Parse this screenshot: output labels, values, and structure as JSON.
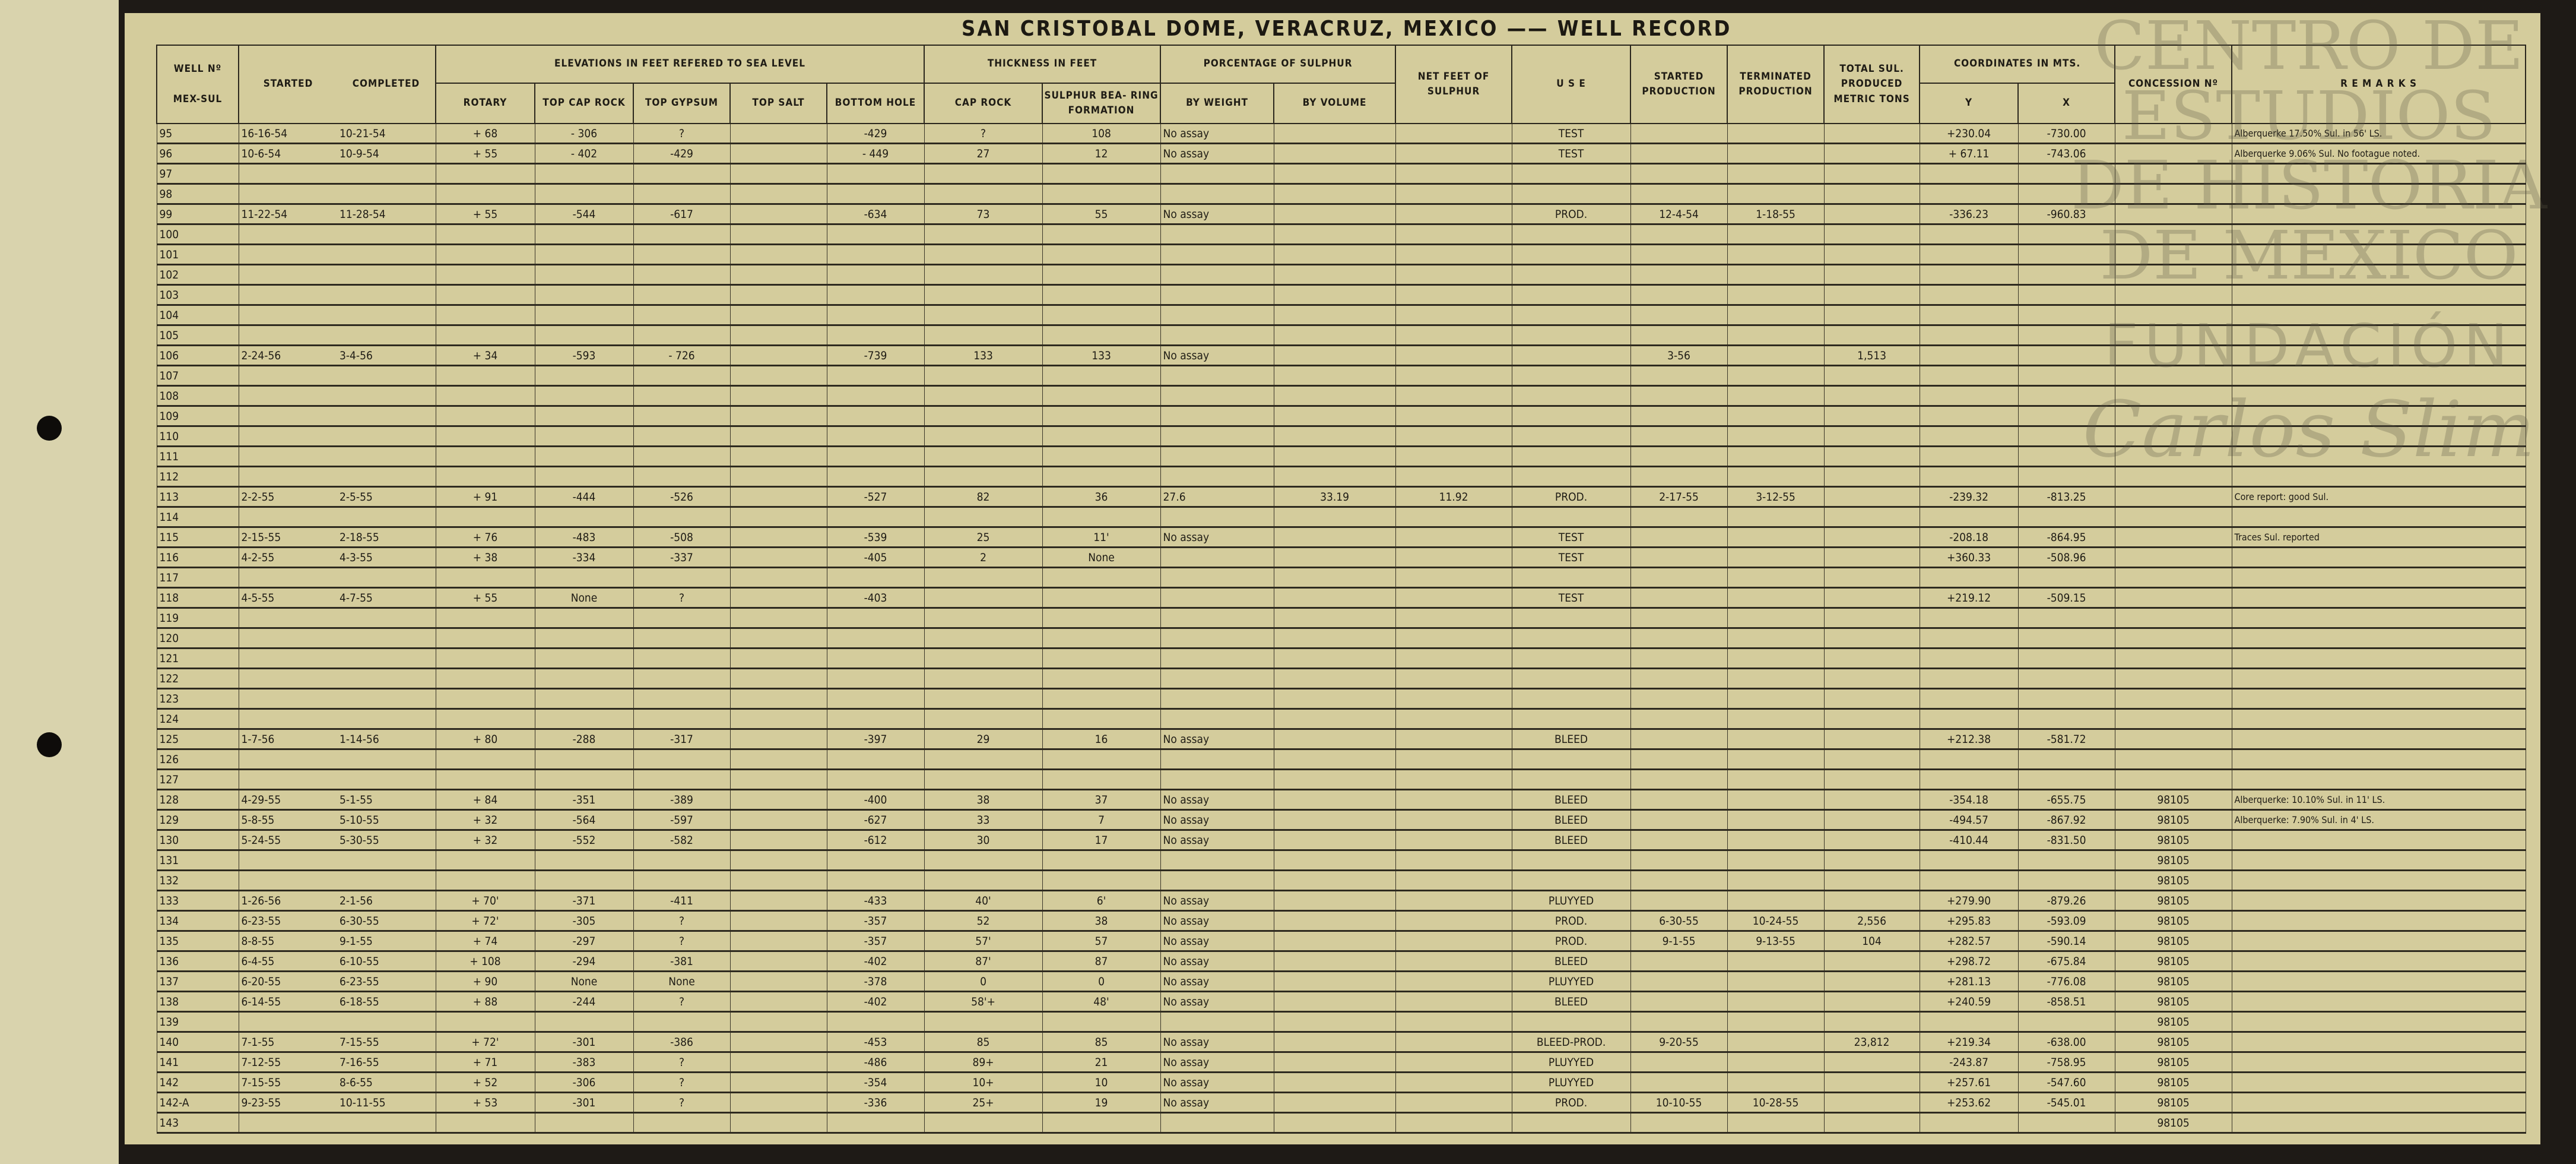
{
  "title": "SAN CRISTOBAL DOME, VERACRUZ, MEXICO —— WELL RECORD",
  "watermark": {
    "line1": "CENTRO DE",
    "line2": "ESTUDIOS",
    "line3": "DE HISTORIA",
    "line4": "DE MEXICO",
    "line5": "FUNDACIÓN",
    "line6": "Carlos Slim"
  },
  "colors": {
    "paper": "#d4cc9c",
    "ink": "#1f1c15",
    "frame": "#1e1a16"
  },
  "headers": {
    "well_no": "WELL Nº",
    "mex_sul": "MEX-SUL",
    "started": "STARTED",
    "completed": "COMPLETED",
    "elevations": "ELEVATIONS IN FEET REFERED TO SEA LEVEL",
    "rotary": "ROTARY",
    "top_cap_rock": "TOP CAP ROCK",
    "top_gypsum": "TOP GYPSUM",
    "top_salt": "TOP SALT",
    "bottom_hole": "BOTTOM HOLE",
    "thickness": "THICKNESS IN FEET",
    "cap_rock": "CAP ROCK",
    "sulphur_bearing": "SULPHUR BEA- RING FORMATION",
    "percentage": "PORCENTAGE OF SULPHUR",
    "by_weight": "BY WEIGHT",
    "by_volume": "BY VOLUME",
    "net_feet": "NET FEET OF SULPHUR",
    "use": "U S E",
    "started_production": "STARTED PRODUCTION",
    "terminated_production": "TERMINATED PRODUCTION",
    "total_sul": "TOTAL SUL. PRODUCED METRIC TONS",
    "coordinates": "COORDINATES IN MTS.",
    "y": "Y",
    "x": "X",
    "concession": "CONCESSION Nº",
    "remarks": "R E M A R K S"
  },
  "rows": [
    [
      "95",
      "16-16-54",
      "10-21-54",
      "+ 68",
      "- 306",
      "?",
      "",
      "-429",
      "?",
      "108",
      "No assay",
      "",
      "",
      "TEST",
      "",
      "",
      "",
      "+230.04",
      "-730.00",
      "",
      "Alberquerke 17.50% Sul. in 56' LS."
    ],
    [
      "96",
      "10-6-54",
      "10-9-54",
      "+ 55",
      "- 402",
      "-429",
      "",
      "- 449",
      "27",
      "12",
      "No assay",
      "",
      "",
      "TEST",
      "",
      "",
      "",
      "+ 67.11",
      "-743.06",
      "",
      "Alberquerke 9.06% Sul. No footague noted."
    ],
    [
      "97",
      "",
      "",
      "",
      "",
      "",
      "",
      "",
      "",
      "",
      "",
      "",
      "",
      "",
      "",
      "",
      "",
      "",
      "",
      "",
      ""
    ],
    [
      "98",
      "",
      "",
      "",
      "",
      "",
      "",
      "",
      "",
      "",
      "",
      "",
      "",
      "",
      "",
      "",
      "",
      "",
      "",
      "",
      ""
    ],
    [
      "99",
      "11-22-54",
      "11-28-54",
      "+ 55",
      "-544",
      "-617",
      "",
      "-634",
      "73",
      "55",
      "No assay",
      "",
      "",
      "PROD.",
      "12-4-54",
      "1-18-55",
      "",
      "-336.23",
      "-960.83",
      "",
      ""
    ],
    [
      "100",
      "",
      "",
      "",
      "",
      "",
      "",
      "",
      "",
      "",
      "",
      "",
      "",
      "",
      "",
      "",
      "",
      "",
      "",
      "",
      ""
    ],
    [
      "101",
      "",
      "",
      "",
      "",
      "",
      "",
      "",
      "",
      "",
      "",
      "",
      "",
      "",
      "",
      "",
      "",
      "",
      "",
      "",
      ""
    ],
    [
      "102",
      "",
      "",
      "",
      "",
      "",
      "",
      "",
      "",
      "",
      "",
      "",
      "",
      "",
      "",
      "",
      "",
      "",
      "",
      "",
      ""
    ],
    [
      "103",
      "",
      "",
      "",
      "",
      "",
      "",
      "",
      "",
      "",
      "",
      "",
      "",
      "",
      "",
      "",
      "",
      "",
      "",
      "",
      ""
    ],
    [
      "104",
      "",
      "",
      "",
      "",
      "",
      "",
      "",
      "",
      "",
      "",
      "",
      "",
      "",
      "",
      "",
      "",
      "",
      "",
      "",
      ""
    ],
    [
      "105",
      "",
      "",
      "",
      "",
      "",
      "",
      "",
      "",
      "",
      "",
      "",
      "",
      "",
      "",
      "",
      "",
      "",
      "",
      "",
      ""
    ],
    [
      "106",
      "2-24-56",
      "3-4-56",
      "+ 34",
      "-593",
      "- 726",
      "",
      "-739",
      "133",
      "133",
      "No assay",
      "",
      "",
      "",
      "3-56",
      "",
      "1,513",
      "",
      "",
      "",
      ""
    ],
    [
      "107",
      "",
      "",
      "",
      "",
      "",
      "",
      "",
      "",
      "",
      "",
      "",
      "",
      "",
      "",
      "",
      "",
      "",
      "",
      "",
      ""
    ],
    [
      "108",
      "",
      "",
      "",
      "",
      "",
      "",
      "",
      "",
      "",
      "",
      "",
      "",
      "",
      "",
      "",
      "",
      "",
      "",
      "",
      ""
    ],
    [
      "109",
      "",
      "",
      "",
      "",
      "",
      "",
      "",
      "",
      "",
      "",
      "",
      "",
      "",
      "",
      "",
      "",
      "",
      "",
      "",
      ""
    ],
    [
      "110",
      "",
      "",
      "",
      "",
      "",
      "",
      "",
      "",
      "",
      "",
      "",
      "",
      "",
      "",
      "",
      "",
      "",
      "",
      "",
      ""
    ],
    [
      "111",
      "",
      "",
      "",
      "",
      "",
      "",
      "",
      "",
      "",
      "",
      "",
      "",
      "",
      "",
      "",
      "",
      "",
      "",
      "",
      ""
    ],
    [
      "112",
      "",
      "",
      "",
      "",
      "",
      "",
      "",
      "",
      "",
      "",
      "",
      "",
      "",
      "",
      "",
      "",
      "",
      "",
      "",
      ""
    ],
    [
      "113",
      "2-2-55",
      "2-5-55",
      "+ 91",
      "-444",
      "-526",
      "",
      "-527",
      "82",
      "36",
      "27.6",
      "33.19",
      "11.92",
      "PROD.",
      "2-17-55",
      "3-12-55",
      "",
      "-239.32",
      "-813.25",
      "",
      "Core report: good Sul."
    ],
    [
      "114",
      "",
      "",
      "",
      "",
      "",
      "",
      "",
      "",
      "",
      "",
      "",
      "",
      "",
      "",
      "",
      "",
      "",
      "",
      "",
      ""
    ],
    [
      "115",
      "2-15-55",
      "2-18-55",
      "+ 76",
      "-483",
      "-508",
      "",
      "-539",
      "25",
      "11'",
      "No assay",
      "",
      "",
      "TEST",
      "",
      "",
      "",
      "-208.18",
      "-864.95",
      "",
      "Traces Sul. reported"
    ],
    [
      "116",
      "4-2-55",
      "4-3-55",
      "+ 38",
      "-334",
      "-337",
      "",
      "-405",
      "2",
      "None",
      "",
      "",
      "",
      "TEST",
      "",
      "",
      "",
      "+360.33",
      "-508.96",
      "",
      ""
    ],
    [
      "117",
      "",
      "",
      "",
      "",
      "",
      "",
      "",
      "",
      "",
      "",
      "",
      "",
      "",
      "",
      "",
      "",
      "",
      "",
      "",
      ""
    ],
    [
      "118",
      "4-5-55",
      "4-7-55",
      "+ 55",
      "None",
      "?",
      "",
      "-403",
      "",
      "",
      "",
      "",
      "",
      "TEST",
      "",
      "",
      "",
      "+219.12",
      "-509.15",
      "",
      ""
    ],
    [
      "119",
      "",
      "",
      "",
      "",
      "",
      "",
      "",
      "",
      "",
      "",
      "",
      "",
      "",
      "",
      "",
      "",
      "",
      "",
      "",
      ""
    ],
    [
      "120",
      "",
      "",
      "",
      "",
      "",
      "",
      "",
      "",
      "",
      "",
      "",
      "",
      "",
      "",
      "",
      "",
      "",
      "",
      "",
      ""
    ],
    [
      "121",
      "",
      "",
      "",
      "",
      "",
      "",
      "",
      "",
      "",
      "",
      "",
      "",
      "",
      "",
      "",
      "",
      "",
      "",
      "",
      ""
    ],
    [
      "122",
      "",
      "",
      "",
      "",
      "",
      "",
      "",
      "",
      "",
      "",
      "",
      "",
      "",
      "",
      "",
      "",
      "",
      "",
      "",
      ""
    ],
    [
      "123",
      "",
      "",
      "",
      "",
      "",
      "",
      "",
      "",
      "",
      "",
      "",
      "",
      "",
      "",
      "",
      "",
      "",
      "",
      "",
      ""
    ],
    [
      "124",
      "",
      "",
      "",
      "",
      "",
      "",
      "",
      "",
      "",
      "",
      "",
      "",
      "",
      "",
      "",
      "",
      "",
      "",
      "",
      ""
    ],
    [
      "125",
      "1-7-56",
      "1-14-56",
      "+ 80",
      "-288",
      "-317",
      "",
      "-397",
      "29",
      "16",
      "No assay",
      "",
      "",
      "BLEED",
      "",
      "",
      "",
      "+212.38",
      "-581.72",
      "",
      ""
    ],
    [
      "126",
      "",
      "",
      "",
      "",
      "",
      "",
      "",
      "",
      "",
      "",
      "",
      "",
      "",
      "",
      "",
      "",
      "",
      "",
      "",
      ""
    ],
    [
      "127",
      "",
      "",
      "",
      "",
      "",
      "",
      "",
      "",
      "",
      "",
      "",
      "",
      "",
      "",
      "",
      "",
      "",
      "",
      "",
      ""
    ],
    [
      "128",
      "4-29-55",
      "5-1-55",
      "+ 84",
      "-351",
      "-389",
      "",
      "-400",
      "38",
      "37",
      "No assay",
      "",
      "",
      "BLEED",
      "",
      "",
      "",
      "-354.18",
      "-655.75",
      "98105",
      "Alberquerke: 10.10% Sul. in 11' LS."
    ],
    [
      "129",
      "5-8-55",
      "5-10-55",
      "+ 32",
      "-564",
      "-597",
      "",
      "-627",
      "33",
      "7",
      "No assay",
      "",
      "",
      "BLEED",
      "",
      "",
      "",
      "-494.57",
      "-867.92",
      "98105",
      "Alberquerke: 7.90% Sul. in 4' LS."
    ],
    [
      "130",
      "5-24-55",
      "5-30-55",
      "+ 32",
      "-552",
      "-582",
      "",
      "-612",
      "30",
      "17",
      "No assay",
      "",
      "",
      "BLEED",
      "",
      "",
      "",
      "-410.44",
      "-831.50",
      "98105",
      ""
    ],
    [
      "131",
      "",
      "",
      "",
      "",
      "",
      "",
      "",
      "",
      "",
      "",
      "",
      "",
      "",
      "",
      "",
      "",
      "",
      "",
      "98105",
      ""
    ],
    [
      "132",
      "",
      "",
      "",
      "",
      "",
      "",
      "",
      "",
      "",
      "",
      "",
      "",
      "",
      "",
      "",
      "",
      "",
      "",
      "98105",
      ""
    ],
    [
      "133",
      "1-26-56",
      "2-1-56",
      "+ 70'",
      "-371",
      "-411",
      "",
      "-433",
      "40'",
      "6'",
      "No assay",
      "",
      "",
      "PLUYYED",
      "",
      "",
      "",
      "+279.90",
      "-879.26",
      "98105",
      ""
    ],
    [
      "134",
      "6-23-55",
      "6-30-55",
      "+ 72'",
      "-305",
      "?",
      "",
      "-357",
      "52",
      "38",
      "No assay",
      "",
      "",
      "PROD.",
      "6-30-55",
      "10-24-55",
      "2,556",
      "+295.83",
      "-593.09",
      "98105",
      ""
    ],
    [
      "135",
      "8-8-55",
      "9-1-55",
      "+ 74",
      "-297",
      "?",
      "",
      "-357",
      "57'",
      "57",
      "No assay",
      "",
      "",
      "PROD.",
      "9-1-55",
      "9-13-55",
      "104",
      "+282.57",
      "-590.14",
      "98105",
      ""
    ],
    [
      "136",
      "6-4-55",
      "6-10-55",
      "+ 108",
      "-294",
      "-381",
      "",
      "-402",
      "87'",
      "87",
      "No assay",
      "",
      "",
      "BLEED",
      "",
      "",
      "",
      "+298.72",
      "-675.84",
      "98105",
      ""
    ],
    [
      "137",
      "6-20-55",
      "6-23-55",
      "+ 90",
      "None",
      "None",
      "",
      "-378",
      "0",
      "0",
      "No assay",
      "",
      "",
      "PLUYYED",
      "",
      "",
      "",
      "+281.13",
      "-776.08",
      "98105",
      ""
    ],
    [
      "138",
      "6-14-55",
      "6-18-55",
      "+ 88",
      "-244",
      "?",
      "",
      "-402",
      "58'+",
      "48'",
      "No assay",
      "",
      "",
      "BLEED",
      "",
      "",
      "",
      "+240.59",
      "-858.51",
      "98105",
      ""
    ],
    [
      "139",
      "",
      "",
      "",
      "",
      "",
      "",
      "",
      "",
      "",
      "",
      "",
      "",
      "",
      "",
      "",
      "",
      "",
      "",
      "98105",
      ""
    ],
    [
      "140",
      "7-1-55",
      "7-15-55",
      "+ 72'",
      "-301",
      "-386",
      "",
      "-453",
      "85",
      "85",
      "No assay",
      "",
      "",
      "BLEED-PROD.",
      "9-20-55",
      "",
      "23,812",
      "+219.34",
      "-638.00",
      "98105",
      ""
    ],
    [
      "141",
      "7-12-55",
      "7-16-55",
      "+ 71",
      "-383",
      "?",
      "",
      "-486",
      "89+",
      "21",
      "No assay",
      "",
      "",
      "PLUYYED",
      "",
      "",
      "",
      "-243.87",
      "-758.95",
      "98105",
      ""
    ],
    [
      "142",
      "7-15-55",
      "8-6-55",
      "+ 52",
      "-306",
      "?",
      "",
      "-354",
      "10+",
      "10",
      "No assay",
      "",
      "",
      "PLUYYED",
      "",
      "",
      "",
      "+257.61",
      "-547.60",
      "98105",
      ""
    ],
    [
      "142-A",
      "9-23-55",
      "10-11-55",
      "+ 53",
      "-301",
      "?",
      "",
      "-336",
      "25+",
      "19",
      "No assay",
      "",
      "",
      "PROD.",
      "10-10-55",
      "10-28-55",
      "",
      "+253.62",
      "-545.01",
      "98105",
      ""
    ],
    [
      "143",
      "",
      "",
      "",
      "",
      "",
      "",
      "",
      "",
      "",
      "",
      "",
      "",
      "",
      "",
      "",
      "",
      "",
      "",
      "98105",
      ""
    ]
  ]
}
